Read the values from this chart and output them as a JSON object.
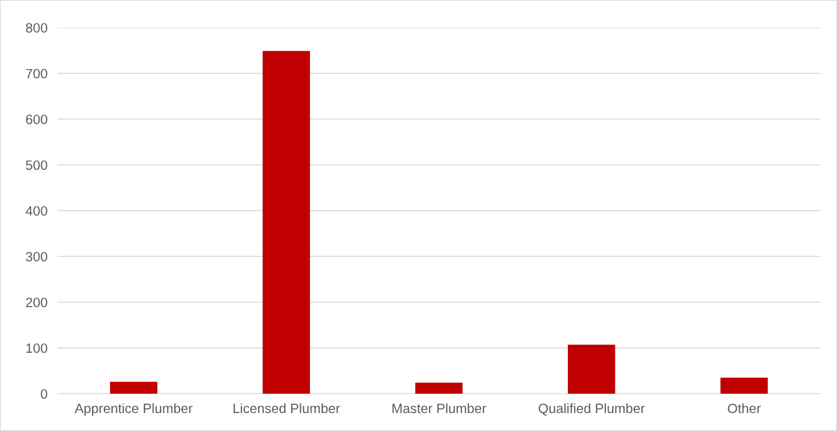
{
  "chart_data": {
    "type": "bar",
    "categories": [
      "Apprentice Plumber",
      "Licensed Plumber",
      "Master Plumber",
      "Qualified Plumber",
      "Other"
    ],
    "values": [
      26,
      749,
      24,
      107,
      35
    ],
    "color": "#c00000",
    "ylim": [
      0,
      800
    ],
    "yticks": [
      0,
      100,
      200,
      300,
      400,
      500,
      600,
      700,
      800
    ],
    "grid": "y",
    "legend": false
  }
}
